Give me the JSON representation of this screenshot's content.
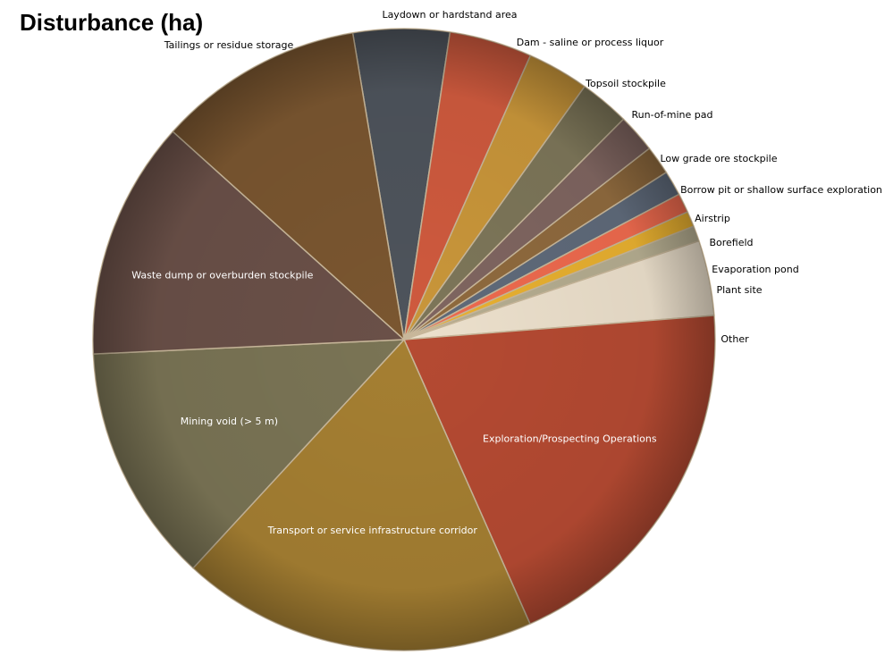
{
  "chart_data": {
    "type": "pie",
    "title": "Disturbance (ha)",
    "categories": [
      "Laydown or hardstand area",
      "Dam - saline or process liquor",
      "Topsoil stockpile",
      "Run-of-mine pad",
      "Low grade ore stockpile",
      "Borrow pit or shallow surface exploration",
      "Airstrip",
      "Borefield",
      "Evaporation pond",
      "Plant site",
      "Other",
      "Exploration/Prospecting Operations",
      "Transport or service infrastructure corridor",
      "Mining void (> 5 m)",
      "Waste dump or overburden stockpile",
      "Tailings or residue storage"
    ],
    "values": [
      5.0,
      4.3,
      3.2,
      2.6,
      2.0,
      1.5,
      1.3,
      1.0,
      0.8,
      0.8,
      3.9,
      19.6,
      18.5,
      12.4,
      12.4,
      10.7
    ],
    "colors": [
      "#4e545c",
      "#cf5a3e",
      "#c9963a",
      "#7d7659",
      "#7f6560",
      "#8f6a3e",
      "#5f6a7a",
      "#ee6a4e",
      "#e8b030",
      "#b5ad90",
      "#ece0cc",
      "#b54a32",
      "#a57f32",
      "#7a7455",
      "#6a5048",
      "#7a5630"
    ],
    "label_placement": [
      "outside",
      "outside",
      "outside",
      "outside",
      "outside",
      "outside",
      "outside",
      "outside",
      "outside",
      "outside",
      "outside",
      "inside",
      "inside",
      "inside",
      "inside",
      "outside"
    ],
    "legend": "none"
  }
}
